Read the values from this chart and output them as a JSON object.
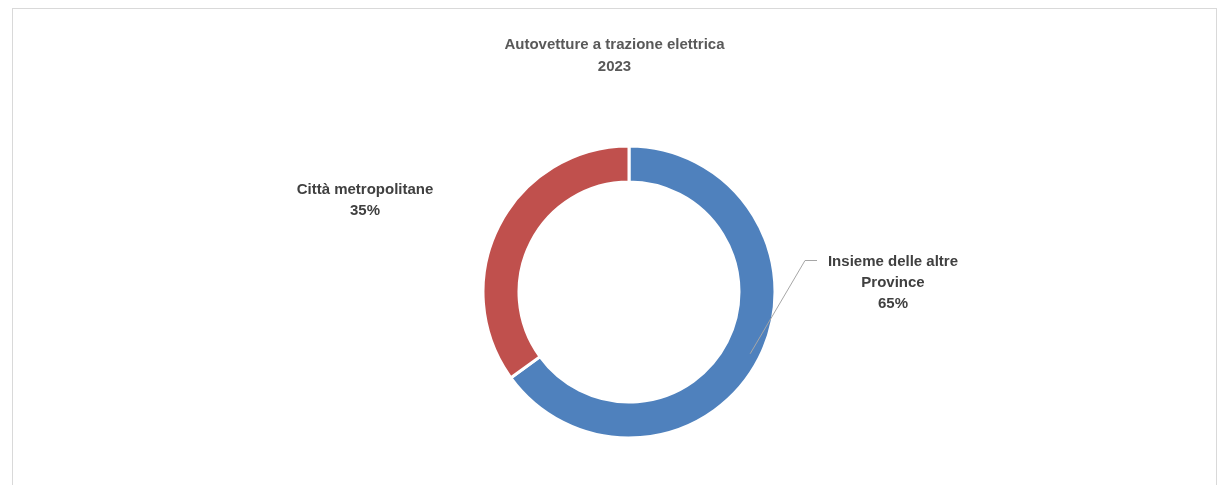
{
  "chart_data": {
    "type": "donut",
    "title": "Autovetture a trazione elettrica\n2023",
    "categories": [
      "Insieme delle altre Province",
      "Città metropolitane"
    ],
    "values": [
      65,
      35
    ],
    "colors": [
      "#4f81bd",
      "#c0504d"
    ],
    "value_labels": [
      "65%",
      "35%"
    ],
    "legend": false
  }
}
